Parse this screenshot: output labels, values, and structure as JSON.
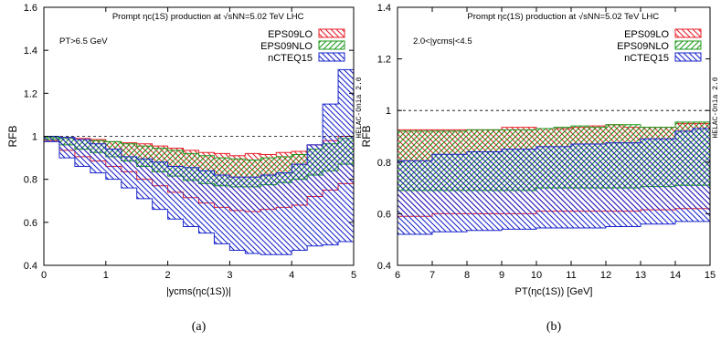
{
  "colors": {
    "EPS09LO": "#e8202a",
    "EPS09NLO": "#1f9a1f",
    "nCTEQ15": "#1a26cc",
    "mix": "#8a1a1a",
    "purple": "#9a1f9a"
  },
  "chart_data": [
    {
      "type": "area",
      "panel_label": "(a)",
      "title": "Prompt ηc(1S) production at √sNN=5.02 TeV LHC",
      "cut_label": "PT>6.5 GeV",
      "xlabel": "|ycms(ηc(1S))|",
      "ylabel": "RFB",
      "xlim": [
        0,
        5
      ],
      "ylim": [
        0.4,
        1.6
      ],
      "x_ticks": [
        "0",
        "1",
        "2",
        "3",
        "4",
        "5"
      ],
      "y_ticks": [
        "0.4",
        "0.6",
        "0.8",
        "1",
        "1.2",
        "1.4",
        "1.6"
      ],
      "reference_line": 1,
      "watermark": "HELAC-Onia 2.0",
      "legend": [
        "EPS09LO",
        "EPS09NLO",
        "nCTEQ15"
      ],
      "bin_edges": [
        0,
        0.25,
        0.5,
        0.75,
        1,
        1.25,
        1.5,
        1.75,
        2,
        2.25,
        2.5,
        2.75,
        3,
        3.25,
        3.5,
        3.75,
        4,
        4.25,
        4.5,
        4.75,
        5
      ],
      "series": [
        {
          "name": "EPS09LO",
          "upper": [
            1.0,
            0.995,
            0.99,
            0.985,
            0.975,
            0.97,
            0.965,
            0.955,
            0.945,
            0.935,
            0.925,
            0.92,
            0.91,
            0.92,
            0.915,
            0.925,
            0.93,
            0.96,
            0.98,
            1.0
          ],
          "lower": [
            0.98,
            0.935,
            0.905,
            0.885,
            0.86,
            0.835,
            0.8,
            0.77,
            0.74,
            0.715,
            0.69,
            0.67,
            0.655,
            0.65,
            0.66,
            0.67,
            0.68,
            0.72,
            0.75,
            0.78
          ]
        },
        {
          "name": "EPS09NLO",
          "upper": [
            0.995,
            0.99,
            0.985,
            0.98,
            0.975,
            0.965,
            0.955,
            0.945,
            0.935,
            0.92,
            0.91,
            0.9,
            0.895,
            0.89,
            0.9,
            0.905,
            0.915,
            0.94,
            0.965,
            0.99
          ],
          "lower": [
            0.985,
            0.96,
            0.94,
            0.925,
            0.905,
            0.885,
            0.86,
            0.835,
            0.815,
            0.795,
            0.78,
            0.77,
            0.765,
            0.765,
            0.775,
            0.785,
            0.8,
            0.82,
            0.84,
            0.87
          ]
        },
        {
          "name": "nCTEQ15",
          "upper": [
            1.0,
            0.995,
            0.985,
            0.965,
            0.94,
            0.905,
            0.895,
            0.88,
            0.86,
            0.855,
            0.84,
            0.82,
            0.81,
            0.81,
            0.82,
            0.83,
            0.87,
            0.96,
            1.15,
            1.31
          ],
          "lower": [
            0.975,
            0.9,
            0.86,
            0.83,
            0.8,
            0.76,
            0.71,
            0.66,
            0.615,
            0.58,
            0.55,
            0.5,
            0.47,
            0.455,
            0.45,
            0.45,
            0.47,
            0.49,
            0.495,
            0.51
          ]
        }
      ]
    },
    {
      "type": "area",
      "panel_label": "(b)",
      "title": "Prompt ηc(1S) production at √sNN=5.02 TeV LHC",
      "cut_label": "2.0<|ycms|<4.5",
      "xlabel": "PT(ηc(1S)) [GeV]",
      "ylabel": "RFB",
      "xlim": [
        6,
        15
      ],
      "ylim": [
        0.4,
        1.4
      ],
      "x_ticks": [
        "6",
        "7",
        "8",
        "9",
        "10",
        "11",
        "12",
        "13",
        "14",
        "15"
      ],
      "y_ticks": [
        "0.4",
        "0.6",
        "0.8",
        "1",
        "1.2",
        "1.4"
      ],
      "reference_line": 1,
      "watermark": "HELAC-Onia 2.0",
      "legend": [
        "EPS09LO",
        "EPS09NLO",
        "nCTEQ15"
      ],
      "bin_edges": [
        6,
        6.5,
        7,
        7.5,
        8,
        8.5,
        9,
        9.5,
        10,
        10.5,
        11,
        11.5,
        12,
        12.5,
        13,
        13.5,
        14,
        14.5,
        15
      ],
      "series": [
        {
          "name": "EPS09LO",
          "upper": [
            0.925,
            0.925,
            0.925,
            0.925,
            0.925,
            0.925,
            0.935,
            0.935,
            0.93,
            0.93,
            0.935,
            0.94,
            0.945,
            0.935,
            0.935,
            0.935,
            0.95,
            0.95
          ],
          "lower": [
            0.59,
            0.59,
            0.6,
            0.6,
            0.6,
            0.6,
            0.6,
            0.6,
            0.61,
            0.61,
            0.61,
            0.61,
            0.61,
            0.61,
            0.615,
            0.615,
            0.62,
            0.62
          ]
        },
        {
          "name": "EPS09NLO",
          "upper": [
            0.92,
            0.92,
            0.92,
            0.92,
            0.925,
            0.925,
            0.925,
            0.925,
            0.93,
            0.935,
            0.94,
            0.935,
            0.945,
            0.945,
            0.935,
            0.935,
            0.955,
            0.955
          ],
          "lower": [
            0.69,
            0.69,
            0.69,
            0.69,
            0.69,
            0.69,
            0.69,
            0.69,
            0.7,
            0.7,
            0.7,
            0.7,
            0.7,
            0.7,
            0.705,
            0.705,
            0.71,
            0.71
          ]
        },
        {
          "name": "nCTEQ15",
          "upper": [
            0.805,
            0.805,
            0.83,
            0.83,
            0.84,
            0.84,
            0.85,
            0.85,
            0.86,
            0.86,
            0.87,
            0.87,
            0.875,
            0.875,
            0.89,
            0.89,
            0.92,
            0.93
          ],
          "lower": [
            0.52,
            0.52,
            0.53,
            0.53,
            0.535,
            0.535,
            0.54,
            0.54,
            0.545,
            0.545,
            0.545,
            0.545,
            0.55,
            0.55,
            0.56,
            0.56,
            0.57,
            0.57
          ]
        }
      ]
    }
  ]
}
